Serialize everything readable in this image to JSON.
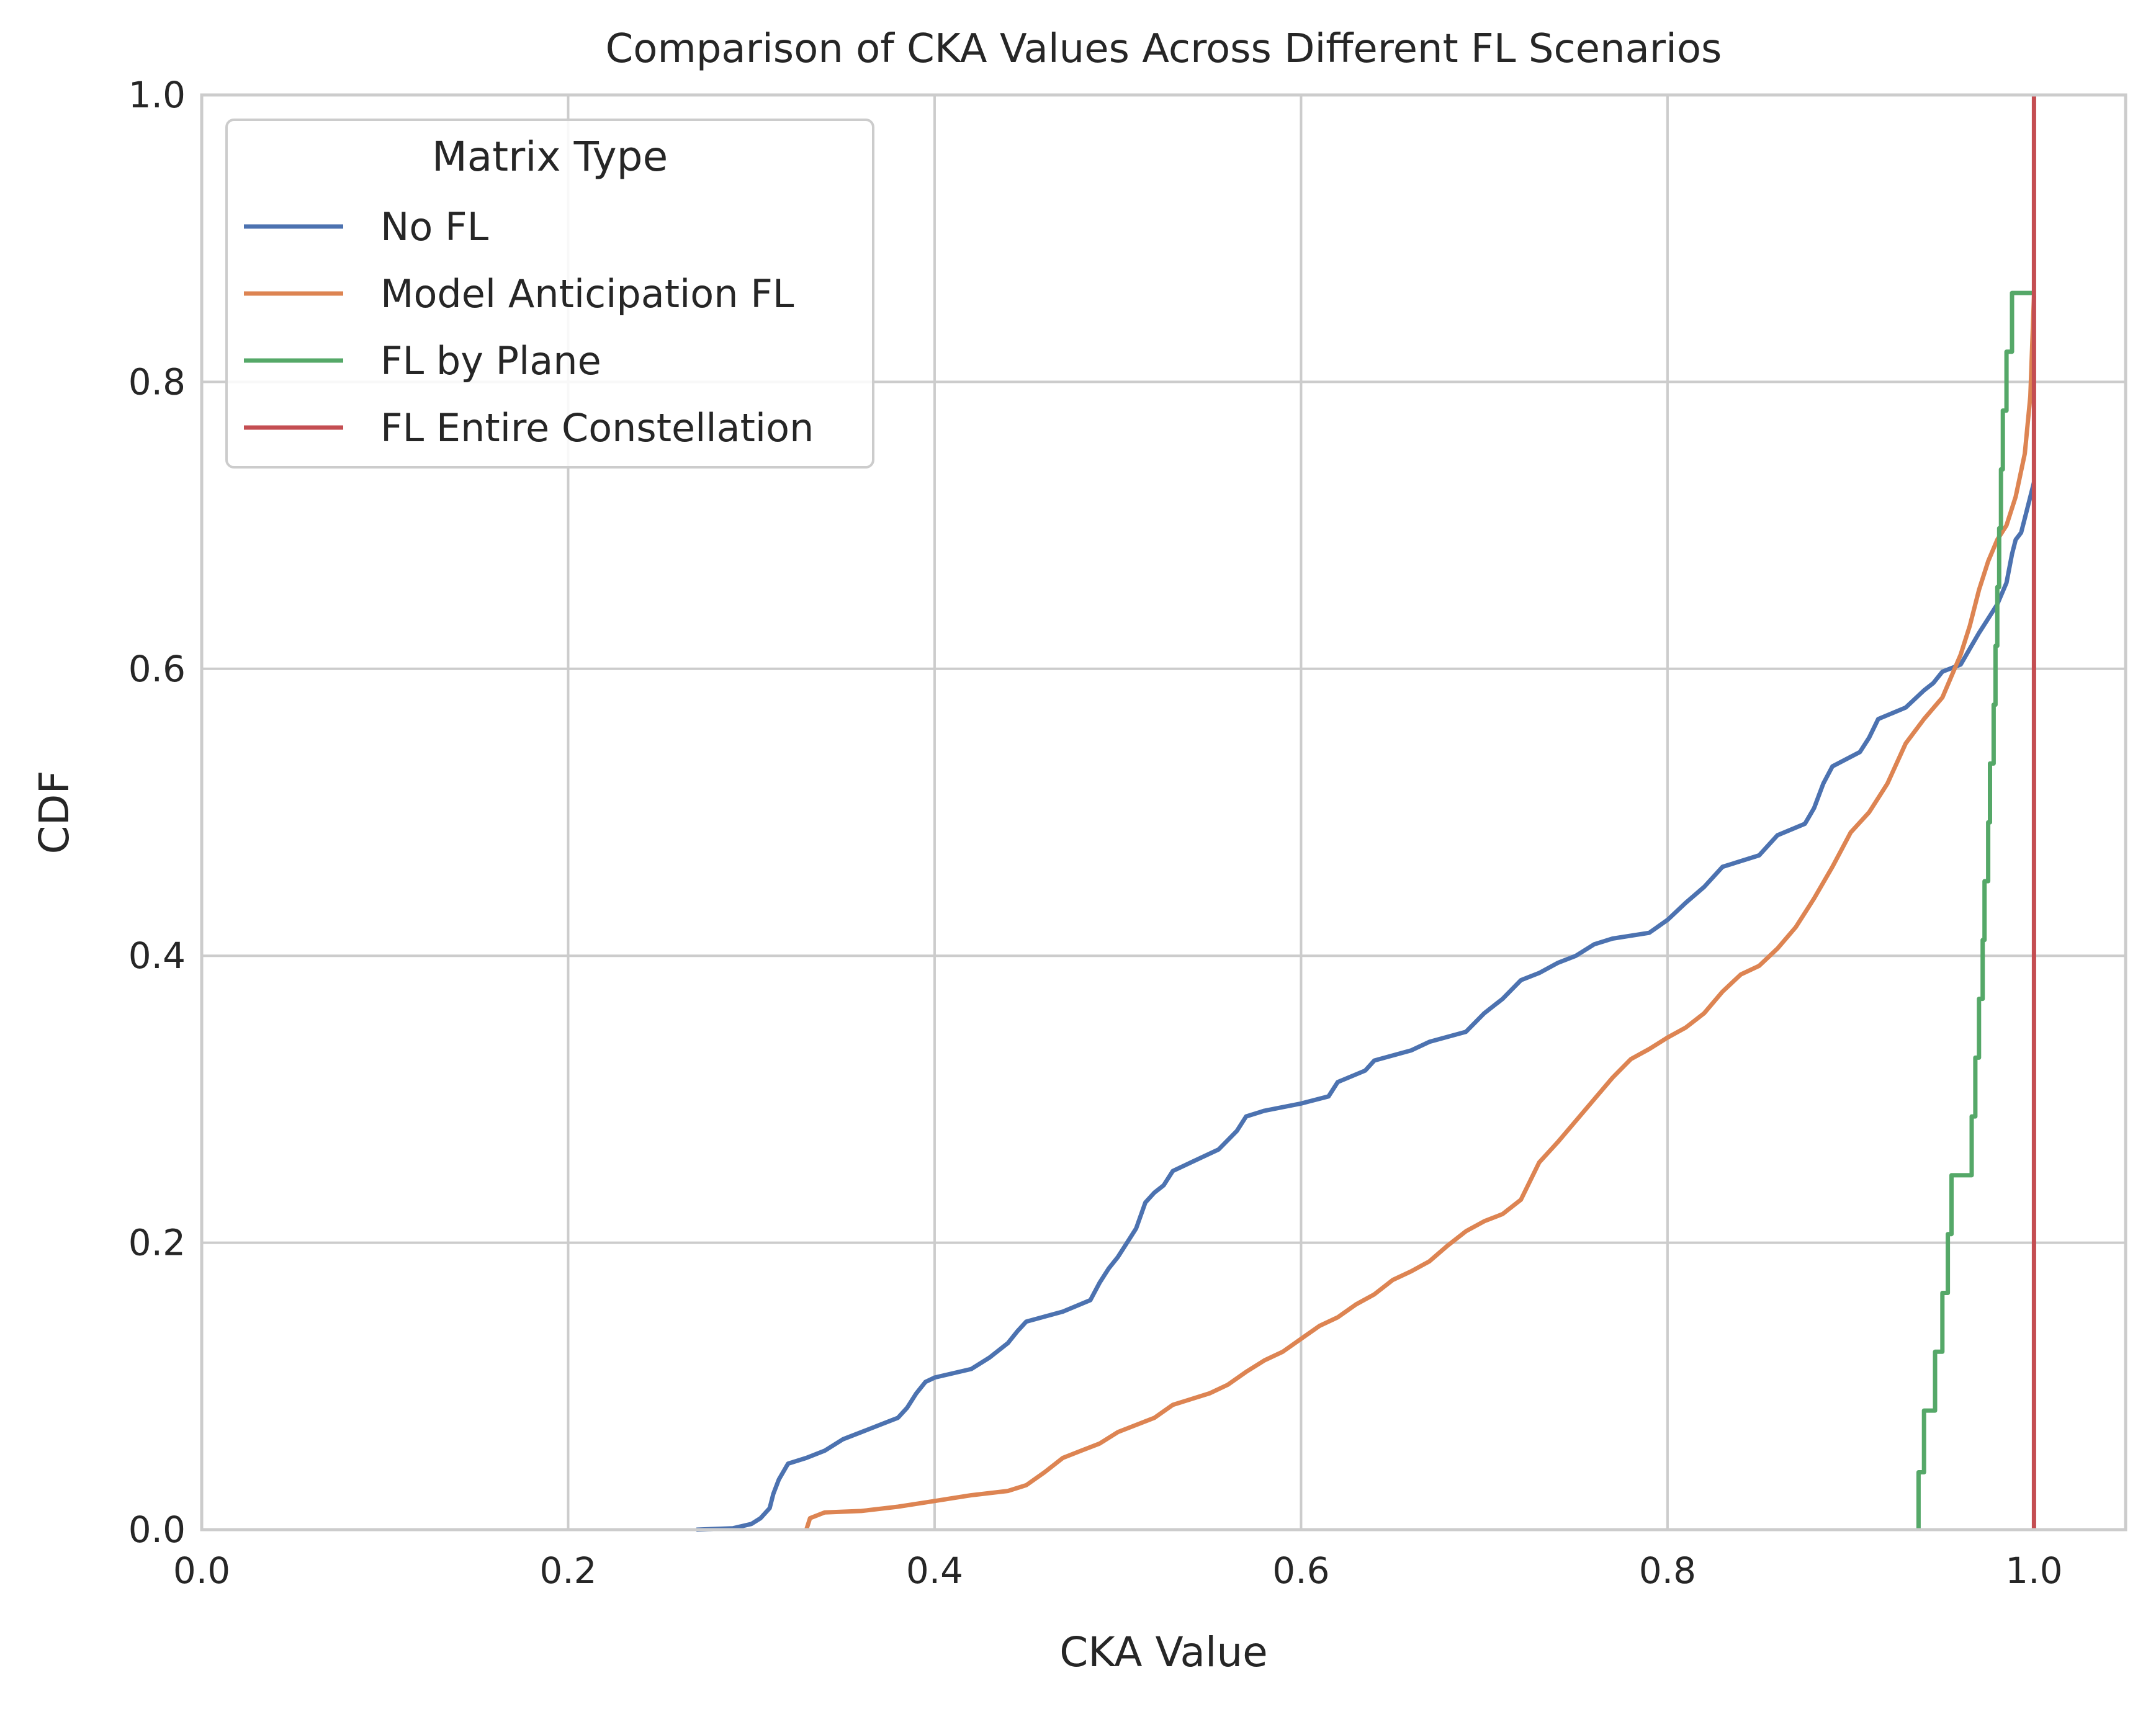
{
  "chart_data": {
    "type": "line",
    "subtype": "ecdf-step",
    "title": "Comparison of CKA Values Across Different FL Scenarios",
    "xlabel": "CKA Value",
    "ylabel": "CDF",
    "xlim": [
      0.0,
      1.05
    ],
    "ylim": [
      0.0,
      1.0
    ],
    "xticks": [
      0.0,
      0.2,
      0.4,
      0.6,
      0.8,
      1.0
    ],
    "xtick_labels": [
      "0.0",
      "0.2",
      "0.4",
      "0.6",
      "0.8",
      "1.0"
    ],
    "yticks": [
      0.0,
      0.2,
      0.4,
      0.6,
      0.8,
      1.0
    ],
    "ytick_labels": [
      "0.0",
      "0.2",
      "0.4",
      "0.6",
      "0.8",
      "1.0"
    ],
    "grid": true,
    "legend": {
      "title": "Matrix Type",
      "location": "upper-left"
    },
    "series": [
      {
        "name": "No FL",
        "color": "#4c72b0",
        "points": [
          [
            0.27,
            0.0
          ],
          [
            0.29,
            0.001
          ],
          [
            0.3,
            0.004
          ],
          [
            0.305,
            0.008
          ],
          [
            0.31,
            0.015
          ],
          [
            0.312,
            0.025
          ],
          [
            0.315,
            0.035
          ],
          [
            0.32,
            0.046
          ],
          [
            0.33,
            0.05
          ],
          [
            0.34,
            0.055
          ],
          [
            0.35,
            0.063
          ],
          [
            0.36,
            0.068
          ],
          [
            0.37,
            0.073
          ],
          [
            0.38,
            0.078
          ],
          [
            0.385,
            0.085
          ],
          [
            0.39,
            0.095
          ],
          [
            0.395,
            0.103
          ],
          [
            0.4,
            0.106
          ],
          [
            0.42,
            0.112
          ],
          [
            0.43,
            0.12
          ],
          [
            0.44,
            0.13
          ],
          [
            0.445,
            0.138
          ],
          [
            0.45,
            0.145
          ],
          [
            0.47,
            0.152
          ],
          [
            0.485,
            0.16
          ],
          [
            0.49,
            0.172
          ],
          [
            0.495,
            0.182
          ],
          [
            0.5,
            0.19
          ],
          [
            0.505,
            0.2
          ],
          [
            0.51,
            0.21
          ],
          [
            0.515,
            0.228
          ],
          [
            0.52,
            0.235
          ],
          [
            0.525,
            0.24
          ],
          [
            0.53,
            0.25
          ],
          [
            0.54,
            0.256
          ],
          [
            0.555,
            0.265
          ],
          [
            0.565,
            0.278
          ],
          [
            0.57,
            0.288
          ],
          [
            0.58,
            0.292
          ],
          [
            0.6,
            0.297
          ],
          [
            0.615,
            0.302
          ],
          [
            0.62,
            0.312
          ],
          [
            0.635,
            0.32
          ],
          [
            0.64,
            0.327
          ],
          [
            0.66,
            0.334
          ],
          [
            0.67,
            0.34
          ],
          [
            0.69,
            0.347
          ],
          [
            0.7,
            0.36
          ],
          [
            0.71,
            0.37
          ],
          [
            0.72,
            0.383
          ],
          [
            0.73,
            0.388
          ],
          [
            0.74,
            0.395
          ],
          [
            0.75,
            0.4
          ],
          [
            0.76,
            0.408
          ],
          [
            0.77,
            0.412
          ],
          [
            0.79,
            0.416
          ],
          [
            0.8,
            0.425
          ],
          [
            0.81,
            0.437
          ],
          [
            0.82,
            0.448
          ],
          [
            0.83,
            0.462
          ],
          [
            0.85,
            0.47
          ],
          [
            0.86,
            0.484
          ],
          [
            0.875,
            0.492
          ],
          [
            0.88,
            0.503
          ],
          [
            0.885,
            0.52
          ],
          [
            0.89,
            0.532
          ],
          [
            0.905,
            0.542
          ],
          [
            0.91,
            0.552
          ],
          [
            0.915,
            0.565
          ],
          [
            0.93,
            0.573
          ],
          [
            0.94,
            0.585
          ],
          [
            0.945,
            0.59
          ],
          [
            0.95,
            0.598
          ],
          [
            0.96,
            0.603
          ],
          [
            0.965,
            0.614
          ],
          [
            0.97,
            0.625
          ],
          [
            0.975,
            0.635
          ],
          [
            0.98,
            0.645
          ],
          [
            0.985,
            0.66
          ],
          [
            0.988,
            0.68
          ],
          [
            0.99,
            0.69
          ],
          [
            0.993,
            0.695
          ],
          [
            0.996,
            0.71
          ],
          [
            0.998,
            0.72
          ],
          [
            1.0,
            0.73
          ]
        ]
      },
      {
        "name": "Model Anticipation FL",
        "color": "#dd8452",
        "points": [
          [
            0.33,
            0.0
          ],
          [
            0.332,
            0.008
          ],
          [
            0.34,
            0.012
          ],
          [
            0.36,
            0.013
          ],
          [
            0.38,
            0.016
          ],
          [
            0.4,
            0.02
          ],
          [
            0.42,
            0.024
          ],
          [
            0.44,
            0.027
          ],
          [
            0.45,
            0.031
          ],
          [
            0.46,
            0.04
          ],
          [
            0.47,
            0.05
          ],
          [
            0.48,
            0.055
          ],
          [
            0.49,
            0.06
          ],
          [
            0.5,
            0.068
          ],
          [
            0.51,
            0.073
          ],
          [
            0.52,
            0.078
          ],
          [
            0.53,
            0.087
          ],
          [
            0.55,
            0.095
          ],
          [
            0.56,
            0.101
          ],
          [
            0.57,
            0.11
          ],
          [
            0.58,
            0.118
          ],
          [
            0.59,
            0.124
          ],
          [
            0.6,
            0.133
          ],
          [
            0.61,
            0.142
          ],
          [
            0.62,
            0.148
          ],
          [
            0.63,
            0.157
          ],
          [
            0.64,
            0.164
          ],
          [
            0.65,
            0.174
          ],
          [
            0.66,
            0.18
          ],
          [
            0.67,
            0.187
          ],
          [
            0.68,
            0.198
          ],
          [
            0.69,
            0.208
          ],
          [
            0.7,
            0.215
          ],
          [
            0.71,
            0.22
          ],
          [
            0.72,
            0.23
          ],
          [
            0.73,
            0.256
          ],
          [
            0.74,
            0.27
          ],
          [
            0.75,
            0.285
          ],
          [
            0.76,
            0.3
          ],
          [
            0.77,
            0.315
          ],
          [
            0.78,
            0.328
          ],
          [
            0.79,
            0.335
          ],
          [
            0.8,
            0.343
          ],
          [
            0.81,
            0.35
          ],
          [
            0.82,
            0.36
          ],
          [
            0.83,
            0.375
          ],
          [
            0.84,
            0.387
          ],
          [
            0.85,
            0.393
          ],
          [
            0.86,
            0.405
          ],
          [
            0.87,
            0.42
          ],
          [
            0.88,
            0.44
          ],
          [
            0.89,
            0.462
          ],
          [
            0.9,
            0.486
          ],
          [
            0.91,
            0.5
          ],
          [
            0.92,
            0.52
          ],
          [
            0.93,
            0.548
          ],
          [
            0.94,
            0.565
          ],
          [
            0.95,
            0.58
          ],
          [
            0.96,
            0.61
          ],
          [
            0.965,
            0.63
          ],
          [
            0.97,
            0.655
          ],
          [
            0.975,
            0.675
          ],
          [
            0.98,
            0.69
          ],
          [
            0.985,
            0.7
          ],
          [
            0.99,
            0.72
          ],
          [
            0.995,
            0.75
          ],
          [
            0.998,
            0.79
          ],
          [
            1.0,
            0.86
          ]
        ]
      },
      {
        "name": "FL by Plane",
        "color": "#55a868",
        "points": [
          [
            0.937,
            0.0
          ],
          [
            0.937,
            0.04
          ],
          [
            0.94,
            0.04
          ],
          [
            0.94,
            0.083
          ],
          [
            0.946,
            0.083
          ],
          [
            0.946,
            0.124
          ],
          [
            0.95,
            0.124
          ],
          [
            0.95,
            0.165
          ],
          [
            0.953,
            0.165
          ],
          [
            0.953,
            0.206
          ],
          [
            0.955,
            0.206
          ],
          [
            0.955,
            0.247
          ],
          [
            0.966,
            0.247
          ],
          [
            0.966,
            0.288
          ],
          [
            0.968,
            0.288
          ],
          [
            0.968,
            0.329
          ],
          [
            0.97,
            0.329
          ],
          [
            0.97,
            0.37
          ],
          [
            0.972,
            0.37
          ],
          [
            0.972,
            0.411
          ],
          [
            0.973,
            0.411
          ],
          [
            0.973,
            0.452
          ],
          [
            0.975,
            0.452
          ],
          [
            0.975,
            0.493
          ],
          [
            0.976,
            0.493
          ],
          [
            0.976,
            0.534
          ],
          [
            0.978,
            0.534
          ],
          [
            0.978,
            0.575
          ],
          [
            0.979,
            0.575
          ],
          [
            0.979,
            0.616
          ],
          [
            0.98,
            0.616
          ],
          [
            0.98,
            0.657
          ],
          [
            0.981,
            0.657
          ],
          [
            0.981,
            0.698
          ],
          [
            0.982,
            0.698
          ],
          [
            0.982,
            0.739
          ],
          [
            0.983,
            0.739
          ],
          [
            0.983,
            0.78
          ],
          [
            0.985,
            0.78
          ],
          [
            0.985,
            0.821
          ],
          [
            0.988,
            0.821
          ],
          [
            0.988,
            0.862
          ],
          [
            1.0,
            0.862
          ]
        ]
      },
      {
        "name": "FL Entire Constellation",
        "color": "#c44e52",
        "points": [
          [
            1.0,
            0.0
          ],
          [
            1.0,
            1.0
          ]
        ]
      }
    ]
  }
}
